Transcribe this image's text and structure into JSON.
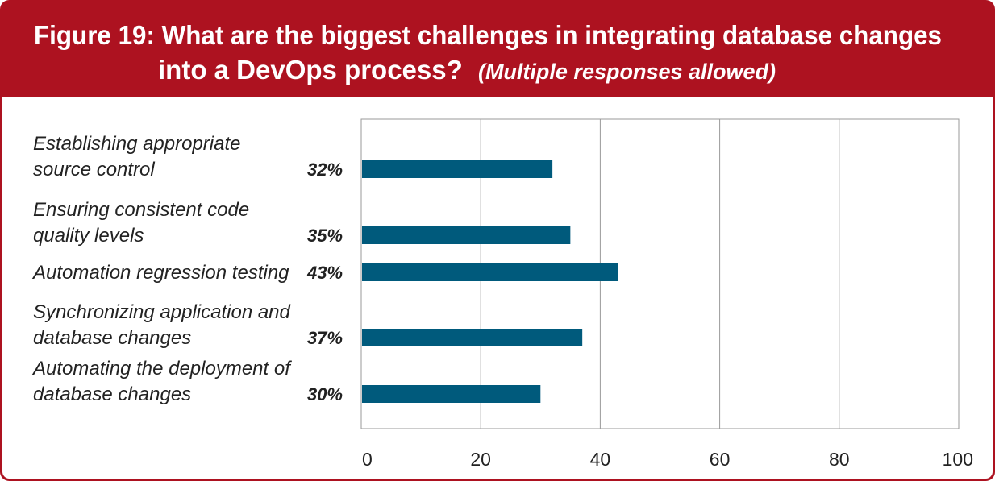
{
  "header": {
    "title_line1": "Figure 19: What are the biggest challenges in integrating database changes",
    "title_line2": "into a DevOps process?",
    "title_note": "(Multiple responses allowed)"
  },
  "colors": {
    "header_background": "#ad1220",
    "bar": "#005a7c",
    "frame_border": "#ad1220"
  },
  "chart_data": {
    "type": "bar",
    "orientation": "horizontal",
    "categories": [
      [
        "Establishing appropriate",
        "source control"
      ],
      [
        "Ensuring consistent code",
        "quality levels"
      ],
      [
        "Automation regression testing"
      ],
      [
        "Synchronizing application and",
        "database changes"
      ],
      [
        "Automating the deployment of",
        "database changes"
      ]
    ],
    "values": [
      32,
      35,
      43,
      37,
      30
    ],
    "value_labels": [
      "32%",
      "35%",
      "43%",
      "37%",
      "30%"
    ],
    "xlim": [
      0,
      100
    ],
    "xticks": [
      0,
      20,
      40,
      60,
      80,
      100
    ],
    "grid": true,
    "legend": false
  }
}
